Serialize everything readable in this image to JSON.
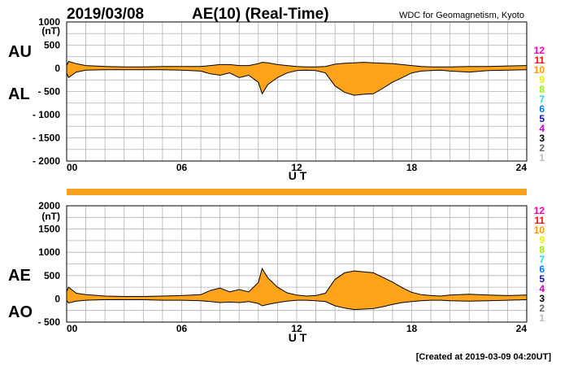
{
  "title": {
    "date": "2019/03/08",
    "main": "AE(10) (Real-Time)",
    "credit": "WDC for Geomagnetism, Kyoto"
  },
  "footer": "[Created at 2019-03-09 04:20UT]",
  "colors": {
    "fill": "#ffa31a",
    "line": "#000000",
    "grid": "#b0b0b0",
    "bar": "#f7a21e"
  },
  "levels": [
    {
      "label": "12",
      "color": "#ff00aa"
    },
    {
      "label": "11",
      "color": "#ee1111"
    },
    {
      "label": "10",
      "color": "#ff9900"
    },
    {
      "label": "9",
      "color": "#eeee00"
    },
    {
      "label": "8",
      "color": "#99ee00"
    },
    {
      "label": "7",
      "color": "#22dddd"
    },
    {
      "label": "6",
      "color": "#0077ff"
    },
    {
      "label": "5",
      "color": "#1111bb"
    },
    {
      "label": "4",
      "color": "#cc00cc"
    },
    {
      "label": "3",
      "color": "#000000"
    },
    {
      "label": "2",
      "color": "#666666"
    },
    {
      "label": "1",
      "color": "#bbbbbb"
    }
  ],
  "chart_data": [
    {
      "type": "area",
      "name": "AU-AL panel",
      "series_labels": [
        "AU",
        "AL"
      ],
      "ylabel": "(nT)",
      "xlabel": "U T",
      "xlim": [
        0,
        24
      ],
      "ylim": [
        -2000,
        1000
      ],
      "xticks": [
        "00",
        "06",
        "12",
        "18",
        "24"
      ],
      "xtick_values": [
        0,
        6,
        12,
        18,
        24
      ],
      "yticks": [
        "1000",
        "500",
        "0",
        "- 500",
        "- 1000",
        "- 1500",
        "- 2000"
      ],
      "ytick_values": [
        1000,
        500,
        0,
        -500,
        -1000,
        -1500,
        -2000
      ],
      "grid": true,
      "series": [
        {
          "name": "AU",
          "x": [
            0,
            0.1,
            0.5,
            1,
            2,
            3,
            4,
            5,
            6,
            7,
            7.5,
            8,
            8.5,
            9,
            9.5,
            10,
            10.2,
            10.5,
            11,
            11.5,
            12,
            12.5,
            13,
            13.5,
            14,
            14.5,
            15,
            15.5,
            16,
            16.5,
            17,
            17.5,
            18,
            18.5,
            19,
            19.5,
            20,
            21,
            22,
            23,
            24
          ],
          "values": [
            60,
            150,
            100,
            60,
            40,
            30,
            30,
            40,
            40,
            40,
            60,
            80,
            80,
            60,
            60,
            100,
            130,
            120,
            80,
            60,
            40,
            30,
            30,
            40,
            90,
            110,
            120,
            130,
            120,
            110,
            100,
            80,
            60,
            40,
            30,
            30,
            30,
            40,
            40,
            50,
            60
          ]
        },
        {
          "name": "AL",
          "x": [
            0,
            0.1,
            0.5,
            1,
            2,
            3,
            4,
            5,
            6,
            7,
            7.5,
            8,
            8.5,
            9,
            9.5,
            10,
            10.2,
            10.5,
            11,
            11.5,
            12,
            12.5,
            13,
            13.5,
            14,
            14.5,
            15,
            15.5,
            16,
            16.5,
            17,
            17.5,
            18,
            18.5,
            19,
            19.5,
            20,
            21,
            22,
            23,
            24
          ],
          "values": [
            -100,
            -200,
            -80,
            -40,
            -30,
            -30,
            -30,
            -30,
            -40,
            -60,
            -120,
            -150,
            -100,
            -200,
            -150,
            -300,
            -550,
            -350,
            -200,
            -100,
            -50,
            -40,
            -50,
            -100,
            -380,
            -520,
            -580,
            -560,
            -550,
            -430,
            -300,
            -200,
            -100,
            -60,
            -50,
            -40,
            -60,
            -80,
            -50,
            -40,
            -30
          ]
        }
      ]
    },
    {
      "type": "area",
      "name": "AE-AO panel",
      "series_labels": [
        "AE",
        "AO"
      ],
      "ylabel": "(nT)",
      "xlabel": "U T",
      "xlim": [
        0,
        24
      ],
      "ylim": [
        -500,
        2000
      ],
      "xticks": [
        "00",
        "06",
        "12",
        "18",
        "24"
      ],
      "xtick_values": [
        0,
        6,
        12,
        18,
        24
      ],
      "yticks": [
        "2000",
        "1500",
        "1000",
        "500",
        "0",
        "- 500"
      ],
      "ytick_values": [
        2000,
        1500,
        1000,
        500,
        0,
        -500
      ],
      "grid": true,
      "series": [
        {
          "name": "AE",
          "x": [
            0,
            0.1,
            0.5,
            1,
            2,
            3,
            4,
            5,
            6,
            7,
            7.5,
            8,
            8.5,
            9,
            9.5,
            10,
            10.2,
            10.5,
            11,
            11.5,
            12,
            12.5,
            13,
            13.5,
            14,
            14.5,
            15,
            15.5,
            16,
            16.5,
            17,
            17.5,
            18,
            18.5,
            19,
            19.5,
            20,
            21,
            22,
            23,
            24
          ],
          "values": [
            160,
            250,
            120,
            90,
            60,
            50,
            50,
            60,
            70,
            90,
            180,
            230,
            150,
            200,
            150,
            350,
            650,
            450,
            250,
            130,
            80,
            60,
            70,
            120,
            420,
            560,
            600,
            580,
            560,
            460,
            360,
            240,
            140,
            90,
            70,
            60,
            80,
            100,
            80,
            70,
            80
          ]
        },
        {
          "name": "AO",
          "x": [
            0,
            0.1,
            0.5,
            1,
            2,
            3,
            4,
            5,
            6,
            7,
            7.5,
            8,
            8.5,
            9,
            9.5,
            10,
            10.2,
            10.5,
            11,
            11.5,
            12,
            12.5,
            13,
            13.5,
            14,
            14.5,
            15,
            15.5,
            16,
            16.5,
            17,
            17.5,
            18,
            18.5,
            19,
            19.5,
            20,
            21,
            22,
            23,
            24
          ],
          "values": [
            -40,
            -90,
            -50,
            -30,
            -20,
            -20,
            -20,
            -30,
            -30,
            -40,
            -60,
            -80,
            -70,
            -80,
            -60,
            -100,
            -150,
            -120,
            -80,
            -50,
            -30,
            -30,
            -40,
            -60,
            -150,
            -200,
            -230,
            -220,
            -210,
            -170,
            -120,
            -80,
            -60,
            -40,
            -30,
            -30,
            -40,
            -50,
            -40,
            -30,
            -20
          ]
        }
      ]
    }
  ]
}
